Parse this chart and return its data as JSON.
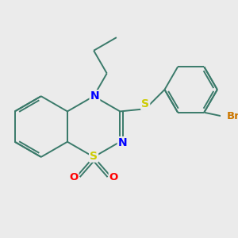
{
  "bg_color": "#ebebeb",
  "bond_color": "#3a7a6a",
  "atom_colors": {
    "N": "#0000ff",
    "S_ring": "#cccc00",
    "S_chain": "#cccc00",
    "O": "#ff0000",
    "Br": "#cc7700",
    "C": "#3a7a6a"
  },
  "line_width": 1.4,
  "font_size": 8.5
}
